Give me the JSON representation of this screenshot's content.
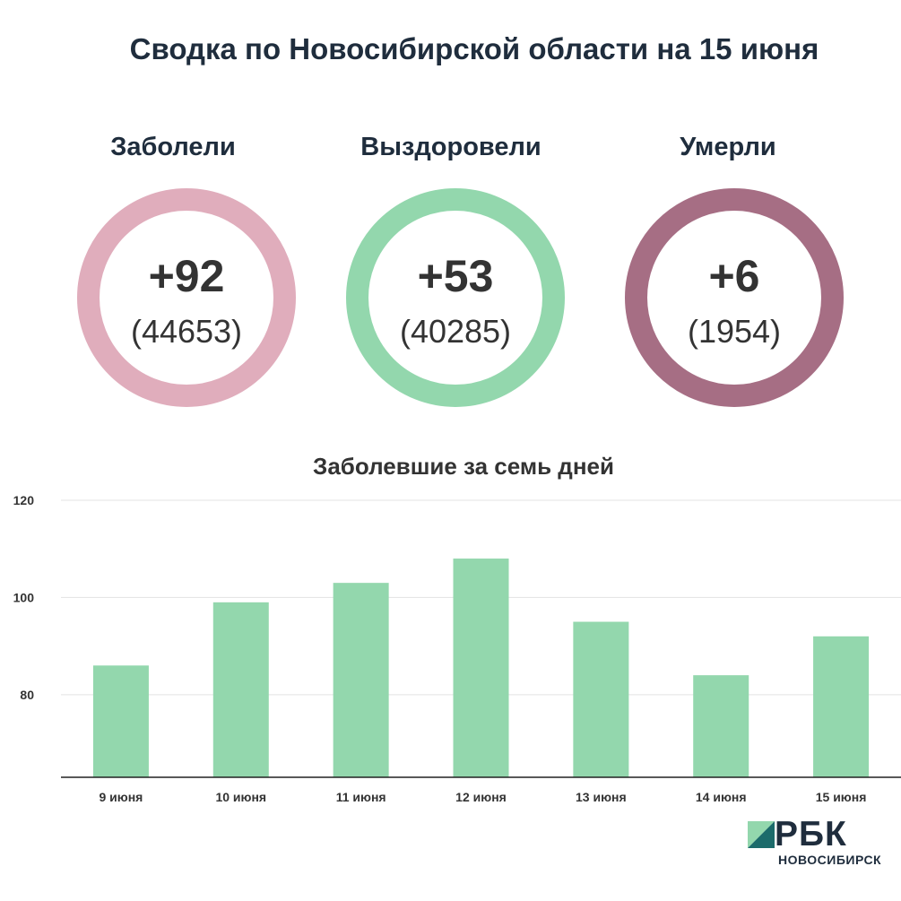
{
  "title": "Сводка по Новосибирской области на 15 июня",
  "stats": [
    {
      "label": "Заболели",
      "delta": "+92",
      "total": "(44653)",
      "color": "#e0adbc"
    },
    {
      "label": "Выздоровели",
      "delta": "+53",
      "total": "(40285)",
      "color": "#93d7ad"
    },
    {
      "label": "Умерли",
      "delta": "+6",
      "total": "(1954)",
      "color": "#a66e84"
    }
  ],
  "chart_data": {
    "type": "bar",
    "title": "Заболевшие за семь дней",
    "categories": [
      "9 июня",
      "10 июня",
      "11 июня",
      "12 июня",
      "13 июня",
      "14 июня",
      "15 июня"
    ],
    "values": [
      86,
      99,
      103,
      108,
      95,
      84,
      92
    ],
    "ylim": [
      63,
      120
    ],
    "yticks": [
      80,
      100,
      120
    ],
    "grid": true,
    "bar_color": "#93d7ad"
  },
  "logo": {
    "name": "РБК",
    "sub": "НОВОСИБИРСК",
    "colors": [
      "#93d7ad",
      "#1c6b6b"
    ]
  }
}
